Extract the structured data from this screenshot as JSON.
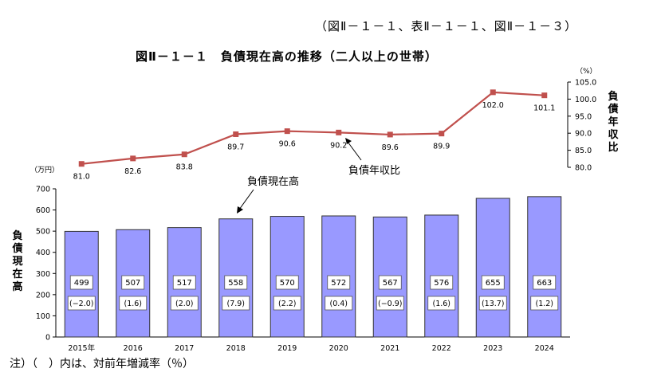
{
  "header": {
    "reference": "（図Ⅱ－１－１、表Ⅱ－１－１、図Ⅱ－１－３）",
    "note": "注）（　）内は、対前年増減率（％）"
  },
  "chart_data": {
    "type": "bar",
    "title": "図Ⅱ－１－１　負債現在高の推移（二人以上の世帯）",
    "categories": [
      "2015年",
      "2016",
      "2017",
      "2018",
      "2019",
      "2020",
      "2021",
      "2022",
      "2023",
      "2024"
    ],
    "series": [
      {
        "name": "負債現在高",
        "type": "bar",
        "values": [
          499,
          507,
          517,
          558,
          570,
          572,
          567,
          576,
          655,
          663
        ],
        "growth_labels": [
          "(−2.0)",
          "(1.6)",
          "(2.0)",
          "(7.9)",
          "(2.2)",
          "(0.4)",
          "(−0.9)",
          "(1.6)",
          "(13.7)",
          "(1.2)"
        ],
        "color": "#9999ff"
      },
      {
        "name": "負債年収比",
        "type": "line",
        "values": [
          81.0,
          82.6,
          83.8,
          89.7,
          90.6,
          90.2,
          89.6,
          89.9,
          102.0,
          101.1
        ],
        "labels": [
          "81.0",
          "82.6",
          "83.8",
          "89.7",
          "90.6",
          "90.2",
          "89.6",
          "89.9",
          "102.0",
          "101.1"
        ],
        "color": "#c0504d"
      }
    ],
    "y_left": {
      "unit": "（万円）",
      "label": "負債現在高",
      "ylim": [
        0,
        700
      ],
      "ticks": [
        "0",
        "100",
        "200",
        "300",
        "400",
        "500",
        "600",
        "700"
      ]
    },
    "y_right": {
      "unit": "（%）",
      "label": "負債年収比",
      "ylim": [
        80,
        105
      ],
      "ticks": [
        "80.0",
        "85.0",
        "90.0",
        "95.0",
        "100.0",
        "105.0"
      ]
    },
    "annotations": [
      "負債現在高",
      "負債年収比"
    ],
    "grid": false,
    "legend": "none"
  }
}
